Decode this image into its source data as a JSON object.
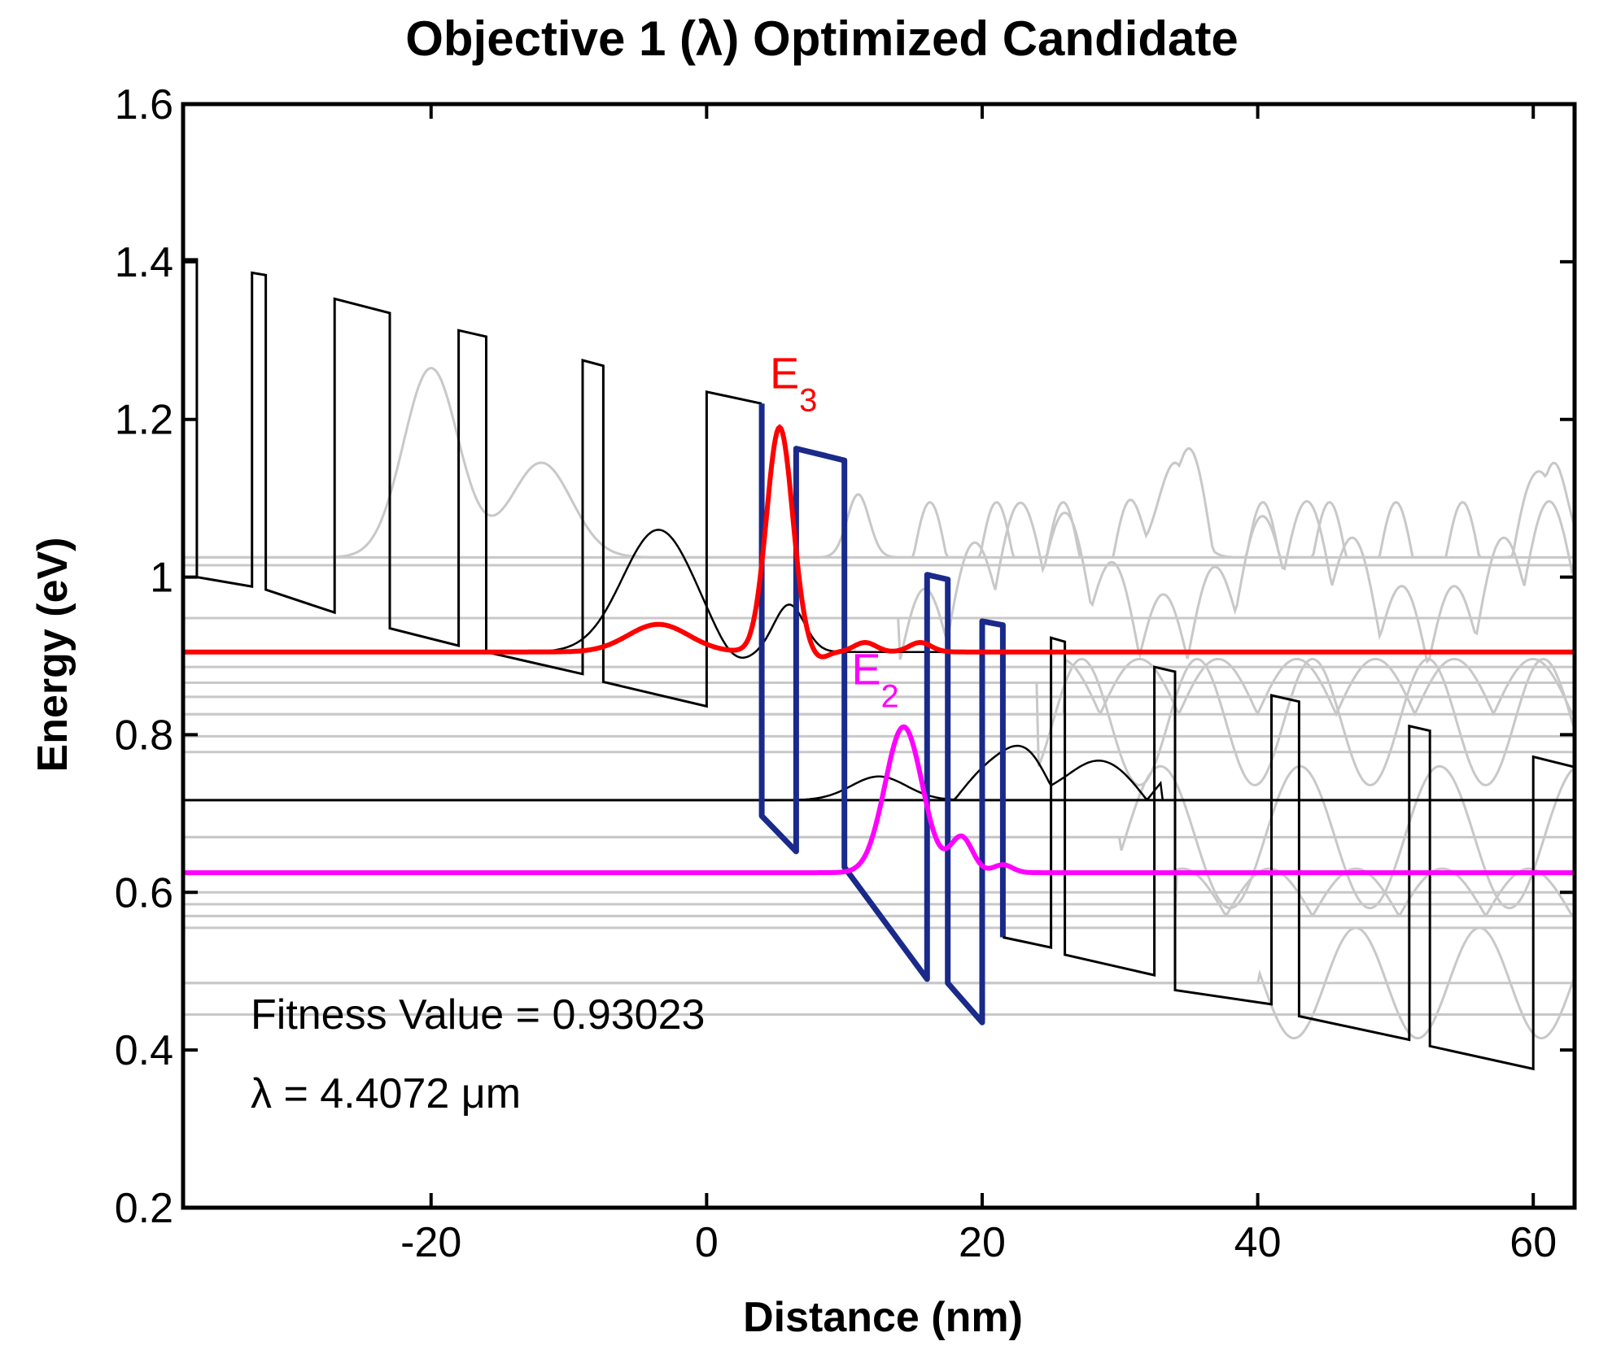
{
  "chart_data": {
    "type": "line",
    "title": "Objective 1 (λ) Optimized Candidate",
    "xlabel": "Distance (nm)",
    "ylabel": "Energy (eV)",
    "xlim": [
      -38,
      63
    ],
    "ylim": [
      0.2,
      1.6
    ],
    "xticks": [
      -20,
      0,
      20,
      40,
      60
    ],
    "xtick_labels": [
      "-20",
      "0",
      "20",
      "40",
      "60"
    ],
    "yticks": [
      0.2,
      0.4,
      0.6,
      0.8,
      1.0,
      1.2,
      1.4,
      1.6
    ],
    "ytick_labels": [
      "0.2",
      "0.4",
      "0.6",
      "0.8",
      "1",
      "1.2",
      "1.4",
      "1.6"
    ],
    "annotations": {
      "fitness": "Fitness Value = 0.93023",
      "wavelength": "λ = 4.4072 μm"
    },
    "colors": {
      "band": "#000000",
      "active_region": "#1a2a8a",
      "E3": "#ff0000",
      "E2": "#ff00ff",
      "other_states": "#c8c8c8"
    },
    "states": {
      "E3": {
        "label": "E",
        "subscript": "3",
        "energy": 0.905,
        "peak_x": 5.3,
        "peak_energy": 1.19
      },
      "E2": {
        "label": "E",
        "subscript": "2",
        "energy": 0.625,
        "peak_x": 14.3,
        "peak_energy": 0.81
      }
    },
    "other_state_levels": [
      1.025,
      1.015,
      0.948,
      0.886,
      0.866,
      0.848,
      0.826,
      0.798,
      0.778,
      0.67,
      0.6,
      0.585,
      0.57,
      0.555,
      0.485,
      0.445
    ],
    "ground_state_level": 0.717,
    "conduction_band": [
      [
        -38,
        1.403
      ],
      [
        -37,
        1.403
      ],
      [
        -37,
        1.0
      ],
      [
        -33,
        0.988
      ],
      [
        -33,
        1.386
      ],
      [
        -32,
        1.383
      ],
      [
        -32,
        0.984
      ],
      [
        -27,
        0.955
      ],
      [
        -27,
        1.353
      ],
      [
        -23,
        1.335
      ],
      [
        -23,
        0.935
      ],
      [
        -18,
        0.913
      ],
      [
        -18,
        1.313
      ],
      [
        -16,
        1.305
      ],
      [
        -16,
        0.905
      ],
      [
        -9,
        0.877
      ],
      [
        -9,
        1.275
      ],
      [
        -7.5,
        1.268
      ],
      [
        -7.5,
        0.867
      ],
      [
        0,
        0.836
      ],
      [
        0,
        1.235
      ],
      [
        4,
        1.22
      ],
      [
        4,
        0.697
      ],
      [
        6.5,
        0.652
      ],
      [
        6.5,
        1.163
      ],
      [
        10,
        1.148
      ],
      [
        10,
        0.632
      ],
      [
        16,
        0.49
      ],
      [
        16,
        1.003
      ],
      [
        17.5,
        0.997
      ],
      [
        17.5,
        0.485
      ],
      [
        20,
        0.435
      ],
      [
        20,
        0.944
      ],
      [
        21.5,
        0.939
      ],
      [
        21.5,
        0.543
      ],
      [
        25,
        0.53
      ],
      [
        25,
        0.923
      ],
      [
        26,
        0.918
      ],
      [
        26,
        0.521
      ],
      [
        32.5,
        0.495
      ],
      [
        32.5,
        0.886
      ],
      [
        34,
        0.88
      ],
      [
        34,
        0.476
      ],
      [
        41,
        0.458
      ],
      [
        41,
        0.85
      ],
      [
        43,
        0.842
      ],
      [
        43,
        0.443
      ],
      [
        51,
        0.413
      ],
      [
        51,
        0.811
      ],
      [
        52.5,
        0.805
      ],
      [
        52.5,
        0.405
      ],
      [
        60,
        0.376
      ],
      [
        60,
        0.772
      ],
      [
        63,
        0.759
      ]
    ],
    "active_region_segment": [
      4,
      21.5
    ]
  }
}
